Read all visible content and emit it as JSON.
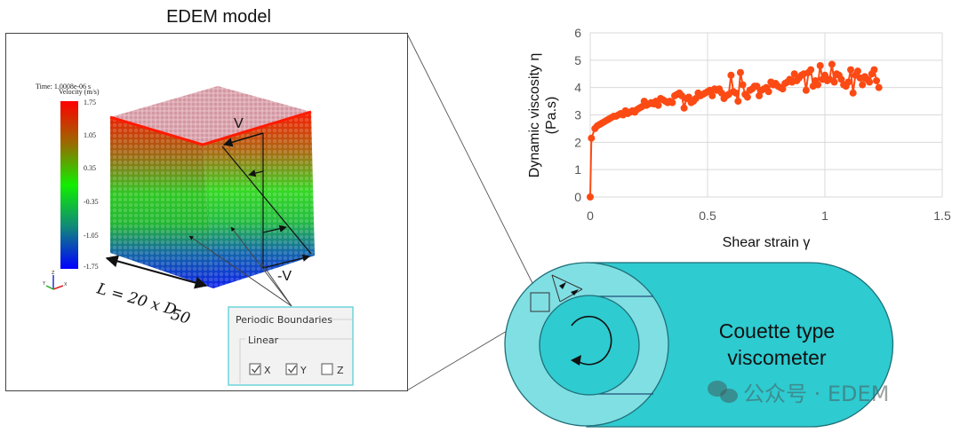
{
  "edem_panel": {
    "title": "EDEM model",
    "time_label": "Time: 1.0008e-06 s",
    "legend_title": "Velocity (m/s)",
    "legend_ticks": [
      "1.75",
      "1.05",
      "0.35",
      "-0.35",
      "-1.05",
      "-1.75"
    ],
    "legend_colors": [
      "#ff0000",
      "#9a6a00",
      "#22dd00",
      "#00ff00",
      "#119966",
      "#0000ff"
    ],
    "velocity_top_label": "V",
    "velocity_bottom_label": "-V",
    "length_formula": "L = 20 x D",
    "length_formula_sub": "50",
    "axes_labels": [
      "Z",
      "Y",
      "X"
    ],
    "periodic_panel": {
      "title": "Periodic Boundaries",
      "group_label": "Linear",
      "checkboxes": [
        {
          "label": "X",
          "checked": true
        },
        {
          "label": "Y",
          "checked": true
        },
        {
          "label": "Z",
          "checked": false
        }
      ]
    }
  },
  "viscometer": {
    "label_line1": "Couette type",
    "label_line2": "viscometer",
    "fill_color": "#2ecbd0",
    "light_fill_color": "#80dfe3"
  },
  "watermark": {
    "text": "公众号 · EDEM"
  },
  "chart_data": {
    "type": "line",
    "title": "",
    "xlabel": "Shear strain γ",
    "ylabel_line1": "Dynamic viscosity η",
    "ylabel_line2": "(Pa.s)",
    "xlim": [
      0,
      1.5
    ],
    "ylim": [
      0,
      6
    ],
    "xticks": [
      "0",
      "0.5",
      "1",
      "1.5"
    ],
    "yticks": [
      "0",
      "1",
      "2",
      "3",
      "4",
      "5",
      "6"
    ],
    "grid": true,
    "markers": true,
    "series_color": "#fc4a14",
    "series": [
      {
        "name": "Dynamic viscosity",
        "x": [
          0,
          0.005,
          0.02,
          0.03,
          0.04,
          0.05,
          0.06,
          0.07,
          0.08,
          0.09,
          0.1,
          0.11,
          0.12,
          0.13,
          0.14,
          0.15,
          0.16,
          0.17,
          0.18,
          0.19,
          0.2,
          0.21,
          0.22,
          0.23,
          0.24,
          0.25,
          0.26,
          0.27,
          0.28,
          0.29,
          0.3,
          0.31,
          0.32,
          0.33,
          0.34,
          0.35,
          0.36,
          0.37,
          0.38,
          0.39,
          0.4,
          0.41,
          0.42,
          0.43,
          0.44,
          0.45,
          0.46,
          0.47,
          0.48,
          0.49,
          0.5,
          0.51,
          0.52,
          0.53,
          0.54,
          0.55,
          0.56,
          0.57,
          0.58,
          0.59,
          0.6,
          0.61,
          0.62,
          0.63,
          0.64,
          0.65,
          0.66,
          0.67,
          0.68,
          0.69,
          0.7,
          0.71,
          0.72,
          0.73,
          0.74,
          0.75,
          0.76,
          0.77,
          0.78,
          0.79,
          0.8,
          0.81,
          0.82,
          0.83,
          0.84,
          0.85,
          0.86,
          0.87,
          0.88,
          0.89,
          0.9,
          0.91,
          0.92,
          0.93,
          0.94,
          0.95,
          0.96,
          0.97,
          0.98,
          0.99,
          1.0,
          1.01,
          1.02,
          1.03,
          1.04,
          1.05,
          1.06,
          1.07,
          1.08,
          1.09,
          1.1,
          1.11,
          1.12,
          1.13,
          1.14,
          1.15,
          1.16,
          1.17,
          1.18,
          1.19,
          1.2,
          1.21,
          1.22,
          1.23
        ],
        "y": [
          0,
          2.15,
          2.5,
          2.6,
          2.65,
          2.7,
          2.75,
          2.8,
          2.85,
          2.9,
          2.95,
          2.95,
          3.0,
          3.05,
          3.0,
          3.15,
          3.05,
          3.1,
          3.15,
          3.1,
          3.2,
          3.25,
          3.3,
          3.5,
          3.35,
          3.4,
          3.45,
          3.4,
          3.5,
          3.35,
          3.6,
          3.55,
          3.5,
          3.45,
          3.5,
          3.45,
          3.7,
          3.75,
          3.8,
          3.7,
          3.25,
          3.6,
          3.65,
          3.45,
          3.5,
          3.6,
          3.8,
          3.7,
          3.75,
          3.8,
          3.85,
          3.9,
          3.7,
          3.95,
          3.9,
          3.95,
          3.8,
          3.6,
          3.7,
          3.75,
          4.45,
          3.85,
          3.8,
          3.5,
          4.55,
          4.1,
          3.75,
          3.65,
          3.9,
          3.95,
          4.05,
          4.05,
          3.7,
          3.9,
          3.95,
          4.0,
          3.85,
          4.2,
          4.1,
          4.15,
          4.05,
          4.0,
          3.95,
          4.15,
          4.2,
          4.3,
          4.2,
          4.5,
          4.25,
          4.35,
          4.45,
          4.5,
          3.9,
          4.55,
          4.65,
          4.05,
          4.25,
          4.1,
          4.8,
          4.3,
          4.45,
          4.25,
          4.3,
          4.85,
          4.2,
          4.5,
          4.45,
          4.3,
          4.1,
          4.05,
          4.2,
          4.65,
          3.8,
          4.45,
          4.6,
          4.35,
          4.1,
          4.4,
          4.3,
          4.2,
          4.5,
          4.65,
          4.25,
          4.0
        ]
      }
    ]
  }
}
